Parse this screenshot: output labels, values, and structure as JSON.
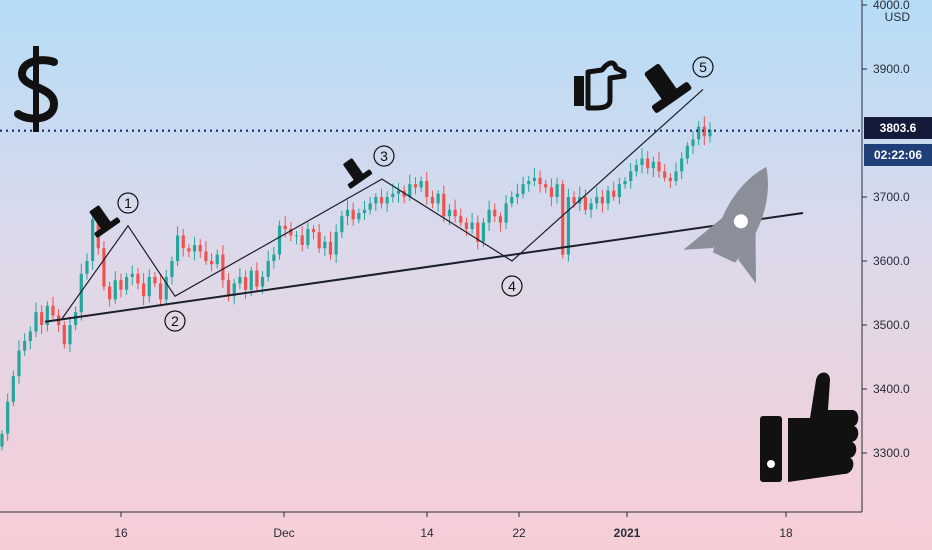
{
  "colors": {
    "up": "#26a69a",
    "down": "#ef5350",
    "axis": "#2a2e39",
    "dotted_line": "#1a2a6c",
    "icon": "#111111",
    "rocket": "#8a8f99"
  },
  "axis": {
    "unit": "USD",
    "price_label": "3803.6",
    "timer_label": "02:22:06"
  },
  "icons": [
    "dollar-icon",
    "gavel-icon",
    "pointing-hand-icon",
    "rocket-icon",
    "thumbs-up-icon"
  ],
  "waves": [
    "1",
    "2",
    "3",
    "4",
    "5"
  ],
  "chart_data": {
    "type": "candlestick",
    "y_ticks": [
      "3300.0",
      "3400.0",
      "3500.0",
      "3600.0",
      "3700.0",
      "3800.0",
      "3900.0",
      "4000.0"
    ],
    "x_ticks": [
      "16",
      "Dec",
      "14",
      "22",
      "2021",
      "18"
    ],
    "ylim": [
      3240,
      4010
    ],
    "close_series": [
      3330,
      3380,
      3420,
      3460,
      3475,
      3490,
      3520,
      3500,
      3530,
      3515,
      3500,
      3470,
      3500,
      3520,
      3580,
      3600,
      3665,
      3620,
      3560,
      3540,
      3570,
      3555,
      3575,
      3580,
      3565,
      3545,
      3575,
      3565,
      3540,
      3575,
      3600,
      3640,
      3620,
      3615,
      3625,
      3615,
      3600,
      3595,
      3610,
      3570,
      3545,
      3565,
      3575,
      3555,
      3585,
      3560,
      3575,
      3600,
      3610,
      3655,
      3650,
      3640,
      3640,
      3625,
      3650,
      3645,
      3620,
      3630,
      3610,
      3645,
      3670,
      3680,
      3665,
      3675,
      3680,
      3690,
      3700,
      3690,
      3700,
      3705,
      3710,
      3700,
      3720,
      3715,
      3725,
      3700,
      3690,
      3705,
      3670,
      3680,
      3670,
      3660,
      3650,
      3660,
      3630,
      3660,
      3680,
      3670,
      3660,
      3690,
      3700,
      3705,
      3720,
      3725,
      3730,
      3720,
      3715,
      3700,
      3720,
      3610,
      3700,
      3690,
      3700,
      3680,
      3690,
      3700,
      3690,
      3710,
      3700,
      3720,
      3725,
      3740,
      3750,
      3760,
      3745,
      3755,
      3740,
      3730,
      3725,
      3740,
      3760,
      3780,
      3790,
      3810,
      3795,
      3805
    ],
    "closes_shown_until": 3803.6,
    "trendlines": [
      {
        "name": "support",
        "from": [
          "start",
          3505
        ],
        "to": [
          "end",
          3670
        ]
      },
      {
        "name": "wave-path",
        "points": [
          3510,
          3655,
          3545,
          3725,
          3600,
          3860
        ]
      }
    ]
  }
}
